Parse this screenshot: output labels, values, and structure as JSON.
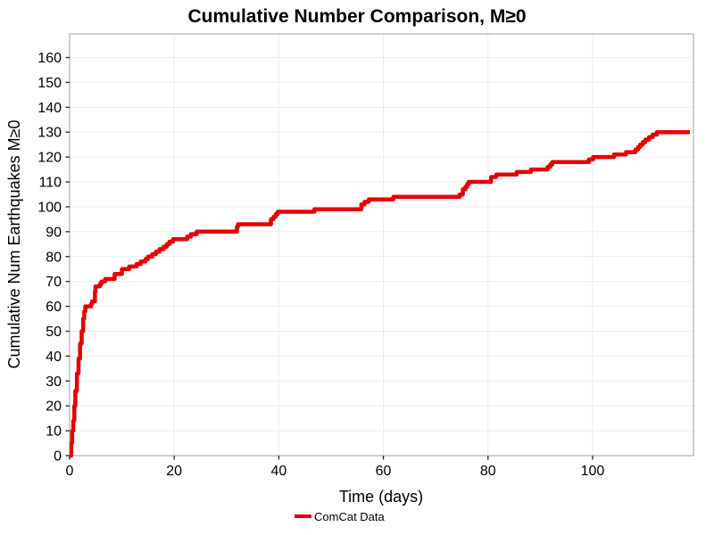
{
  "title": "Cumulative Number Comparison, M≥0",
  "chart_data": {
    "type": "line",
    "style": "step-after",
    "title": "Cumulative Number Comparison, M≥0",
    "xlabel": "Time (days)",
    "ylabel": "Cumulative Num Earthquakes M≥0",
    "xlim": [
      0,
      119.3
    ],
    "ylim": [
      0,
      169.5
    ],
    "x_ticks": [
      0,
      20,
      40,
      60,
      80,
      100
    ],
    "y_ticks": [
      0,
      10,
      20,
      30,
      40,
      50,
      60,
      70,
      80,
      90,
      100,
      110,
      120,
      130,
      140,
      150,
      160
    ],
    "grid": true,
    "legend": {
      "label": "ComCat Data",
      "position": "bottom-center"
    },
    "colors": {
      "line": "#e60000",
      "grid": "#ebebeb",
      "border": "#b0b0b0",
      "tick": "#333333",
      "text": "#000000"
    },
    "series": [
      {
        "name": "ComCat Data",
        "color": "#e60000",
        "points": [
          [
            0,
            0
          ],
          [
            0.3,
            5
          ],
          [
            0.5,
            10
          ],
          [
            0.7,
            14
          ],
          [
            0.9,
            20
          ],
          [
            1.1,
            26
          ],
          [
            1.4,
            33
          ],
          [
            1.7,
            39
          ],
          [
            2.0,
            45
          ],
          [
            2.3,
            50
          ],
          [
            2.6,
            55
          ],
          [
            2.8,
            58
          ],
          [
            3.0,
            60
          ],
          [
            3.9,
            60
          ],
          [
            4.1,
            61
          ],
          [
            4.3,
            62
          ],
          [
            4.7,
            62
          ],
          [
            4.85,
            66
          ],
          [
            4.95,
            68
          ],
          [
            5.6,
            68
          ],
          [
            5.8,
            69
          ],
          [
            6.1,
            70
          ],
          [
            6.6,
            70
          ],
          [
            6.8,
            71
          ],
          [
            8.4,
            71
          ],
          [
            8.6,
            73
          ],
          [
            9.8,
            73
          ],
          [
            10.0,
            75
          ],
          [
            11.2,
            75
          ],
          [
            11.4,
            76
          ],
          [
            12.6,
            76
          ],
          [
            12.8,
            77
          ],
          [
            13.6,
            78
          ],
          [
            14.5,
            79
          ],
          [
            15.0,
            80
          ],
          [
            15.8,
            81
          ],
          [
            16.5,
            82
          ],
          [
            17.2,
            83
          ],
          [
            18.0,
            84
          ],
          [
            18.6,
            85
          ],
          [
            19.1,
            86
          ],
          [
            19.8,
            87
          ],
          [
            22.3,
            87
          ],
          [
            22.5,
            88
          ],
          [
            23.2,
            89
          ],
          [
            24.3,
            90
          ],
          [
            31.7,
            90
          ],
          [
            32.0,
            92
          ],
          [
            32.2,
            93
          ],
          [
            38.1,
            93
          ],
          [
            38.5,
            95
          ],
          [
            39.0,
            96
          ],
          [
            39.4,
            97
          ],
          [
            39.8,
            98
          ],
          [
            46.4,
            98
          ],
          [
            46.8,
            99
          ],
          [
            55.4,
            99
          ],
          [
            55.8,
            101
          ],
          [
            56.4,
            102
          ],
          [
            57.2,
            103
          ],
          [
            61.5,
            103
          ],
          [
            61.9,
            104
          ],
          [
            74.2,
            104
          ],
          [
            74.6,
            105
          ],
          [
            75.2,
            107
          ],
          [
            75.7,
            108
          ],
          [
            76.0,
            109
          ],
          [
            76.3,
            110
          ],
          [
            80.3,
            110
          ],
          [
            80.6,
            112
          ],
          [
            81.6,
            113
          ],
          [
            85.2,
            113
          ],
          [
            85.5,
            114
          ],
          [
            88.0,
            114
          ],
          [
            88.2,
            115
          ],
          [
            91.0,
            115
          ],
          [
            91.4,
            116
          ],
          [
            91.9,
            117
          ],
          [
            92.3,
            118
          ],
          [
            98.9,
            118
          ],
          [
            99.3,
            119
          ],
          [
            100.1,
            120
          ],
          [
            103.5,
            120
          ],
          [
            104.1,
            121
          ],
          [
            106.0,
            121
          ],
          [
            106.4,
            122
          ],
          [
            107.9,
            122
          ],
          [
            108.2,
            123
          ],
          [
            108.7,
            124
          ],
          [
            109.1,
            125
          ],
          [
            109.6,
            126
          ],
          [
            110.1,
            127
          ],
          [
            110.8,
            128
          ],
          [
            111.5,
            129
          ],
          [
            112.3,
            130
          ],
          [
            118.6,
            130
          ]
        ]
      }
    ]
  }
}
